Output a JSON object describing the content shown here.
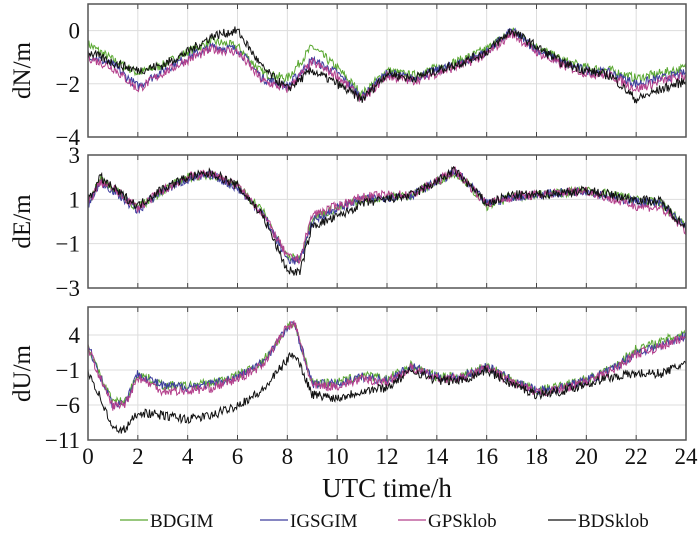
{
  "chart_data": {
    "type": "line",
    "xlabel": "UTC time/h",
    "xlim": [
      0,
      24
    ],
    "xticks": [
      0,
      2,
      4,
      6,
      8,
      10,
      12,
      14,
      16,
      18,
      20,
      22,
      24
    ],
    "grid": true,
    "legend": {
      "placement": "bottom",
      "entries": [
        "BDGIM",
        "IGSGIM",
        "GPSklob",
        "BDSklob"
      ]
    },
    "colors": {
      "BDGIM": "#5aa832",
      "IGSGIM": "#3d3d9e",
      "GPSklob": "#b4408c",
      "BDSklob": "#111111"
    },
    "panels": [
      {
        "ylabel": "dN/m",
        "ylim": [
          -4,
          1
        ],
        "yticks": [
          0,
          -2,
          -4
        ],
        "x": [
          0,
          1,
          2,
          3,
          4,
          5,
          6,
          7,
          8,
          9,
          10,
          11,
          12,
          13,
          14,
          15,
          16,
          17,
          18,
          19,
          20,
          21,
          22,
          23,
          24
        ],
        "series": [
          {
            "name": "BDGIM",
            "y": [
              -0.5,
              -1.1,
              -1.6,
              -1.3,
              -0.8,
              -0.4,
              -0.6,
              -1.6,
              -1.8,
              -0.6,
              -1.4,
              -2.4,
              -1.5,
              -1.7,
              -1.4,
              -1.1,
              -0.7,
              0.0,
              -0.6,
              -1.1,
              -1.4,
              -1.5,
              -1.8,
              -1.6,
              -1.4
            ]
          },
          {
            "name": "IGSGIM",
            "y": [
              -0.9,
              -1.3,
              -2.1,
              -1.5,
              -1.0,
              -0.6,
              -0.7,
              -1.8,
              -2.1,
              -1.1,
              -1.6,
              -2.5,
              -1.6,
              -1.8,
              -1.5,
              -1.2,
              -0.8,
              0.0,
              -0.7,
              -1.2,
              -1.5,
              -1.6,
              -2.0,
              -1.8,
              -1.6
            ]
          },
          {
            "name": "GPSklob",
            "y": [
              -1.0,
              -1.4,
              -2.2,
              -1.6,
              -1.1,
              -0.7,
              -0.8,
              -1.9,
              -2.2,
              -1.2,
              -1.7,
              -2.6,
              -1.7,
              -1.9,
              -1.6,
              -1.3,
              -0.9,
              -0.1,
              -0.8,
              -1.3,
              -1.6,
              -1.7,
              -2.2,
              -1.9,
              -1.7
            ]
          },
          {
            "name": "BDSklob",
            "y": [
              -0.8,
              -1.2,
              -1.5,
              -1.3,
              -0.8,
              -0.2,
              0.0,
              -1.4,
              -2.2,
              -1.5,
              -2.0,
              -2.6,
              -1.6,
              -1.8,
              -1.5,
              -1.2,
              -0.8,
              0.0,
              -0.6,
              -1.2,
              -1.5,
              -1.7,
              -2.6,
              -2.2,
              -1.9
            ]
          }
        ]
      },
      {
        "ylabel": "dE/m",
        "ylim": [
          -3,
          3
        ],
        "yticks": [
          3,
          1,
          -1,
          -3
        ],
        "x": [
          0,
          0.5,
          1,
          2,
          3,
          4,
          5,
          6,
          7,
          8,
          8.5,
          9,
          10,
          11,
          12,
          13,
          14,
          14.7,
          15,
          16,
          17,
          18,
          19,
          20,
          21,
          22,
          23,
          24
        ],
        "series": [
          {
            "name": "BDGIM",
            "y": [
              0.8,
              1.9,
              1.5,
              0.6,
              1.4,
              2.0,
              2.1,
              1.6,
              0.5,
              -1.6,
              -1.7,
              0.2,
              0.6,
              1.0,
              1.1,
              1.2,
              1.8,
              2.2,
              2.0,
              0.7,
              1.1,
              1.2,
              1.3,
              1.4,
              1.2,
              1.0,
              0.8,
              -0.2
            ]
          },
          {
            "name": "IGSGIM",
            "y": [
              0.7,
              1.8,
              1.4,
              0.5,
              1.4,
              1.9,
              2.1,
              1.5,
              0.4,
              -1.7,
              -1.8,
              0.0,
              0.6,
              1.0,
              1.1,
              1.2,
              1.8,
              2.2,
              2.0,
              0.8,
              1.1,
              1.2,
              1.3,
              1.4,
              1.1,
              0.9,
              0.8,
              -0.3
            ]
          },
          {
            "name": "GPSklob",
            "y": [
              0.8,
              1.8,
              1.5,
              0.6,
              1.4,
              2.0,
              2.2,
              1.6,
              0.4,
              -1.6,
              -1.7,
              0.3,
              0.7,
              1.1,
              1.2,
              1.2,
              1.8,
              2.3,
              2.0,
              0.8,
              1.1,
              1.2,
              1.3,
              1.4,
              1.0,
              0.7,
              0.6,
              -0.4
            ]
          },
          {
            "name": "BDSklob",
            "y": [
              0.9,
              2.0,
              1.5,
              0.7,
              1.5,
              2.0,
              2.2,
              1.6,
              0.3,
              -2.2,
              -2.3,
              -0.2,
              0.2,
              0.8,
              1.0,
              1.2,
              1.8,
              2.3,
              2.0,
              0.8,
              1.2,
              1.2,
              1.3,
              1.4,
              1.2,
              1.0,
              0.9,
              -0.3
            ]
          }
        ]
      },
      {
        "ylabel": "dU/m",
        "ylim": [
          -11,
          8
        ],
        "yticks": [
          4,
          -1,
          -6,
          -11
        ],
        "x": [
          0,
          0.5,
          1,
          1.5,
          2,
          3,
          4,
          5,
          6,
          7,
          8,
          8.3,
          9,
          10,
          11,
          12,
          13,
          14,
          15,
          16,
          17,
          18,
          19,
          20,
          21,
          22,
          23,
          24
        ],
        "series": [
          {
            "name": "BDGIM",
            "y": [
              2.5,
              -2,
              -5.5,
              -5.5,
              -1.5,
              -3.2,
              -3.3,
              -2.8,
              -1.8,
              0.2,
              5.0,
              5.5,
              -2.8,
              -2.8,
              -1.8,
              -2.3,
              -0.3,
              -2.0,
              -1.8,
              -0.4,
              -2.4,
              -4.0,
              -3.3,
              -2.3,
              -0.8,
              2.0,
              3.0,
              4.5
            ]
          },
          {
            "name": "IGSGIM",
            "y": [
              2.5,
              -2,
              -6,
              -5.5,
              -1.5,
              -3.3,
              -3.4,
              -3.0,
              -2.0,
              0.0,
              5.0,
              5.5,
              -3.0,
              -3.0,
              -2.0,
              -2.5,
              -0.5,
              -2.0,
              -2.0,
              -0.5,
              -2.5,
              -4.0,
              -3.5,
              -2.5,
              -1.0,
              1.5,
              2.5,
              4.0
            ]
          },
          {
            "name": "GPSklob",
            "y": [
              2.3,
              -2.3,
              -6.2,
              -5.8,
              -2.0,
              -4.0,
              -4.0,
              -3.5,
              -2.3,
              -0.3,
              5.2,
              5.6,
              -3.3,
              -3.3,
              -2.3,
              -2.7,
              -0.7,
              -2.2,
              -2.2,
              -0.7,
              -2.7,
              -4.3,
              -3.7,
              -2.7,
              -1.2,
              1.3,
              2.3,
              3.7
            ]
          },
          {
            "name": "BDSklob",
            "y": [
              -1,
              -5,
              -9.5,
              -9.5,
              -7,
              -7.5,
              -8,
              -7.5,
              -6,
              -4,
              0.5,
              1.5,
              -4.5,
              -5,
              -4,
              -3.5,
              -1,
              -2.5,
              -2.5,
              -1,
              -3,
              -4.5,
              -4,
              -3,
              -2,
              -1.5,
              -1.5,
              0
            ]
          }
        ]
      }
    ]
  }
}
